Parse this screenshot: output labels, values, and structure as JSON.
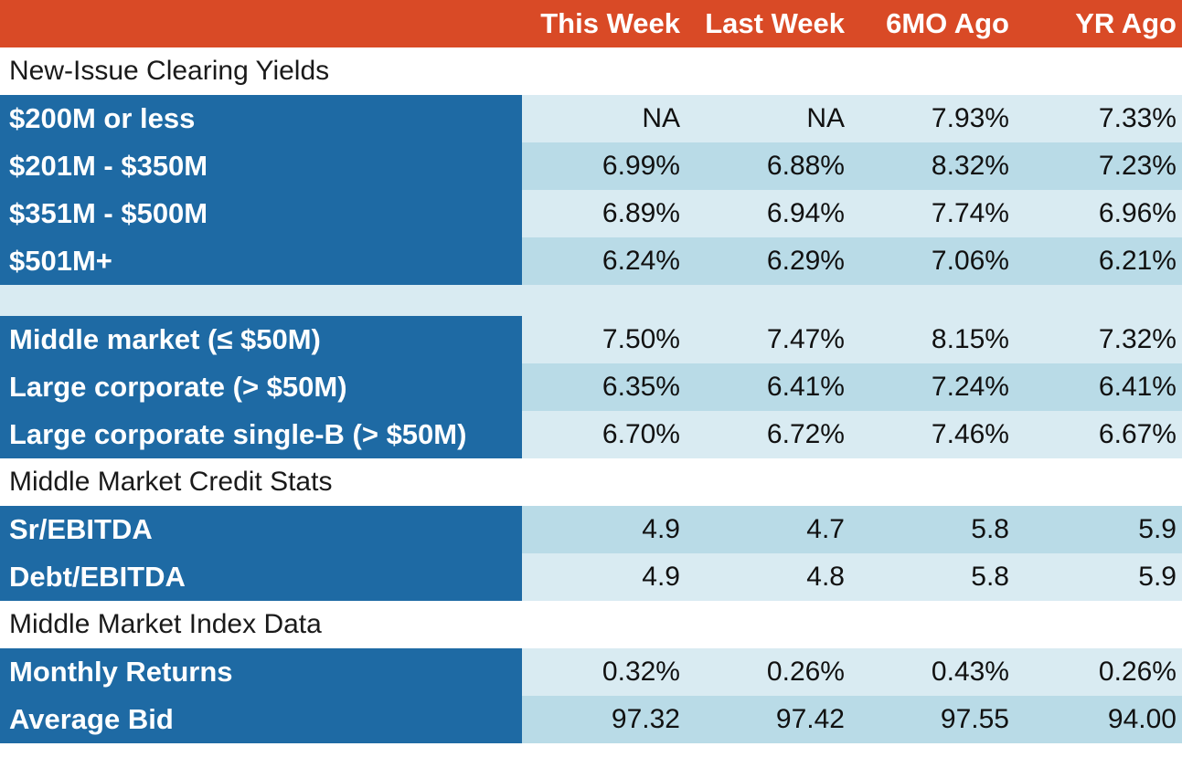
{
  "header": {
    "columns": [
      "This Week",
      "Last Week",
      "6MO Ago",
      "YR Ago"
    ]
  },
  "sections": {
    "clearing_yields": {
      "title": "New-Issue Clearing Yields",
      "rows": [
        {
          "label": "$200M or less",
          "values": [
            "NA",
            "NA",
            "7.93%",
            "7.33%"
          ]
        },
        {
          "label": "$201M - $350M",
          "values": [
            "6.99%",
            "6.88%",
            "8.32%",
            "7.23%"
          ]
        },
        {
          "label": "$351M - $500M",
          "values": [
            "6.89%",
            "6.94%",
            "7.74%",
            "6.96%"
          ]
        },
        {
          "label": "$501M+",
          "values": [
            "6.24%",
            "6.29%",
            "7.06%",
            "6.21%"
          ]
        }
      ]
    },
    "market_segments": {
      "rows": [
        {
          "label": "Middle market (≤ $50M)",
          "values": [
            "7.50%",
            "7.47%",
            "8.15%",
            "7.32%"
          ]
        },
        {
          "label": "Large corporate (> $50M)",
          "values": [
            "6.35%",
            "6.41%",
            "7.24%",
            "6.41%"
          ]
        },
        {
          "label": "Large corporate single-B (> $50M)",
          "values": [
            "6.70%",
            "6.72%",
            "7.46%",
            "6.67%"
          ]
        }
      ]
    },
    "credit_stats": {
      "title": "Middle Market Credit Stats",
      "rows": [
        {
          "label": "Sr/EBITDA",
          "values": [
            "4.9",
            "4.7",
            "5.8",
            "5.9"
          ]
        },
        {
          "label": "Debt/EBITDA",
          "values": [
            "4.9",
            "4.8",
            "5.8",
            "5.9"
          ]
        }
      ]
    },
    "index_data": {
      "title": "Middle Market Index Data",
      "rows": [
        {
          "label": "Monthly Returns",
          "values": [
            "0.32%",
            "0.26%",
            "0.43%",
            "0.26%"
          ]
        },
        {
          "label": "Average Bid",
          "values": [
            "97.32",
            "97.42",
            "97.55",
            "94.00"
          ]
        }
      ]
    }
  },
  "colors": {
    "header_bg": "#d94a26",
    "label_bg": "#1e6aa4",
    "value_light_bg": "#d9ebf2",
    "value_dark_bg": "#b9dbe7"
  }
}
